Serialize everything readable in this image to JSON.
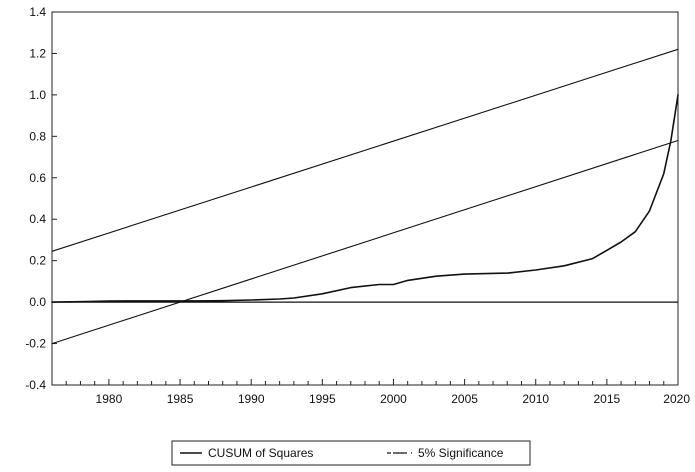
{
  "chart_data": {
    "type": "line",
    "title": "",
    "xlabel": "",
    "ylabel": "",
    "xlim": [
      1976,
      2020
    ],
    "ylim": [
      -0.4,
      1.4
    ],
    "y_ticks": [
      -0.4,
      -0.2,
      0.0,
      0.2,
      0.4,
      0.6,
      0.8,
      1.0,
      1.2,
      1.4
    ],
    "y_tick_labels": [
      "-0.4",
      "-0.2",
      "0.0",
      "0.2",
      "0.4",
      "0.6",
      "0.8",
      "1.0",
      "1.2",
      "1.4"
    ],
    "x_ticks": [
      1980,
      1985,
      1990,
      1995,
      2000,
      2005,
      2010,
      2015,
      2020
    ],
    "x_tick_labels": [
      "1980",
      "1985",
      "1990",
      "1995",
      "2000",
      "2005",
      "2010",
      "2015",
      "2020"
    ],
    "grid": false,
    "zero_line": true,
    "legend_position": "bottom-center",
    "series": [
      {
        "name": "CUSUM of Squares",
        "style": "solid",
        "x": [
          1976,
          1978,
          1980,
          1982,
          1984,
          1986,
          1988,
          1990,
          1992,
          1993,
          1995,
          1997,
          1999,
          2000,
          2001,
          2003,
          2005,
          2008,
          2010,
          2012,
          2014,
          2015,
          2016,
          2017,
          2018,
          2019,
          2019.5,
          2020
        ],
        "values": [
          0.0,
          0.002,
          0.005,
          0.006,
          0.006,
          0.006,
          0.007,
          0.01,
          0.015,
          0.02,
          0.04,
          0.07,
          0.085,
          0.085,
          0.105,
          0.125,
          0.135,
          0.14,
          0.155,
          0.175,
          0.21,
          0.25,
          0.29,
          0.34,
          0.44,
          0.62,
          0.78,
          1.0
        ]
      },
      {
        "name": "5% Significance",
        "style": "solid",
        "x": [
          1976,
          2020
        ],
        "values": [
          0.245,
          1.22
        ]
      },
      {
        "name": "5% Significance",
        "style": "solid",
        "x": [
          1976,
          2020
        ],
        "values": [
          -0.2,
          0.78
        ]
      }
    ],
    "legend": [
      "CUSUM of Squares",
      "5% Significance"
    ]
  }
}
